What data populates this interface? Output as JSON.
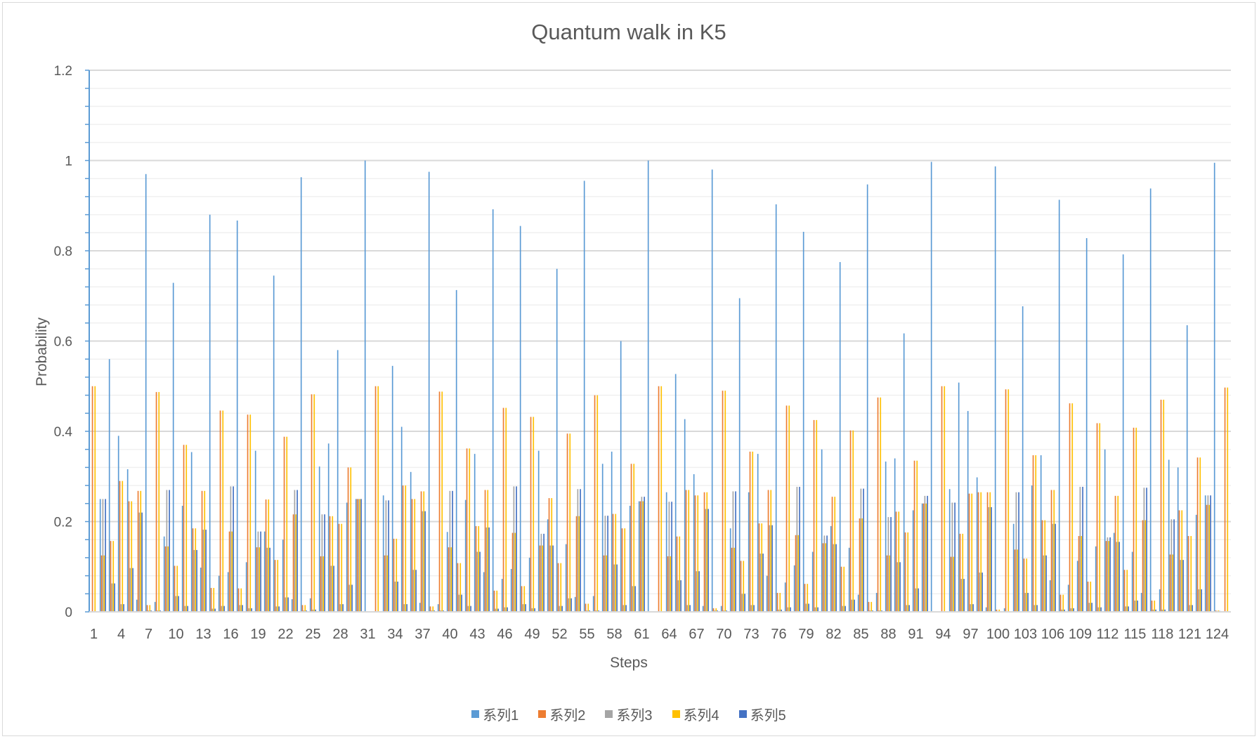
{
  "chart_data": {
    "type": "bar",
    "title": "Quantum walk in K5",
    "xlabel": "Steps",
    "ylabel": "Probability",
    "ylim": [
      0,
      1.2
    ],
    "yticks": [
      "0",
      "0.2",
      "0.4",
      "0.6",
      "0.8",
      "1",
      "1.2"
    ],
    "grid": true,
    "legend_position": "bottom",
    "x_tick_labels": [
      "1",
      "4",
      "7",
      "10",
      "13",
      "16",
      "19",
      "22",
      "25",
      "28",
      "31",
      "34",
      "37",
      "40",
      "43",
      "46",
      "49",
      "52",
      "55",
      "58",
      "61",
      "64",
      "67",
      "70",
      "73",
      "76",
      "79",
      "82",
      "85",
      "88",
      "91",
      "94",
      "97",
      "100",
      "103",
      "106",
      "109",
      "112",
      "115",
      "118",
      "121",
      "124"
    ],
    "categories": [
      1,
      2,
      3,
      4,
      5,
      6,
      7,
      8,
      9,
      10,
      11,
      12,
      13,
      14,
      15,
      16,
      17,
      18,
      19,
      20,
      21,
      22,
      23,
      24,
      25,
      26,
      27,
      28,
      29,
      30,
      31,
      32,
      33,
      34,
      35,
      36,
      37,
      38,
      39,
      40,
      41,
      42,
      43,
      44,
      45,
      46,
      47,
      48,
      49,
      50,
      51,
      52,
      53,
      54,
      55,
      56,
      57,
      58,
      59,
      60,
      61,
      62,
      63,
      64,
      65,
      66,
      67,
      68,
      69,
      70,
      71,
      72,
      73,
      74,
      75,
      76,
      77,
      78,
      79,
      80,
      81,
      82,
      83,
      84,
      85,
      86,
      87,
      88,
      89,
      90,
      91,
      92,
      93,
      94,
      95,
      96,
      97,
      98,
      99,
      100,
      101,
      102,
      103,
      104,
      105,
      106,
      107,
      108,
      109,
      110,
      111,
      112,
      113,
      114,
      115,
      116,
      117,
      118,
      119,
      120,
      121,
      122,
      123,
      124,
      125
    ],
    "series": [
      {
        "name": "系列1",
        "color": "#5B9BD5",
        "values": [
          0,
          0.25,
          0.56,
          0.39,
          0.316,
          0.027,
          0.97,
          0.022,
          0.167,
          0.729,
          0.235,
          0.354,
          0.098,
          0.88,
          0.08,
          0.088,
          0.867,
          0.11,
          0.357,
          0.178,
          0.745,
          0.16,
          0.028,
          0.963,
          0.03,
          0.322,
          0.373,
          0.58,
          0.242,
          0.25,
          1.0,
          0,
          0.258,
          0.545,
          0.41,
          0.31,
          0.02,
          0.975,
          0.017,
          0.177,
          0.713,
          0.248,
          0.35,
          0.088,
          0.892,
          0.073,
          0.095,
          0.855,
          0.12,
          0.357,
          0.205,
          0.76,
          0.15,
          0.033,
          0.955,
          0.035,
          0.328,
          0.355,
          0.6,
          0.235,
          0.245,
          1.0,
          0,
          0.265,
          0.527,
          0.427,
          0.305,
          0.013,
          0.98,
          0.013,
          0.185,
          0.695,
          0.265,
          0.35,
          0.08,
          0.903,
          0.065,
          0.103,
          0.842,
          0.133,
          0.36,
          0.19,
          0.775,
          0.142,
          0.038,
          0.947,
          0.042,
          0.333,
          0.34,
          0.617,
          0.225,
          0.24,
          0.997,
          0,
          0.272,
          0.508,
          0.445,
          0.298,
          0.01,
          0.987,
          0.008,
          0.195,
          0.677,
          0.28,
          0.347,
          0.07,
          0.913,
          0.06,
          0.113,
          0.828,
          0.145,
          0.36,
          0.175,
          0.792,
          0.133,
          0.042,
          0.938,
          0.05,
          0.337,
          0.32,
          0.635,
          0.215,
          0.258,
          0.995,
          0
        ]
      },
      {
        "name": "系列2",
        "color": "#ED7D31",
        "values": [
          0.5,
          0.125,
          0.157,
          0.29,
          0.245,
          0.268,
          0.015,
          0.487,
          0.145,
          0.102,
          0.37,
          0.185,
          0.268,
          0.053,
          0.446,
          0.178,
          0.052,
          0.437,
          0.143,
          0.249,
          0.115,
          0.388,
          0.216,
          0.015,
          0.482,
          0.123,
          0.212,
          0.195,
          0.32,
          0.25,
          0,
          0.5,
          0.125,
          0.162,
          0.28,
          0.25,
          0.267,
          0.012,
          0.488,
          0.143,
          0.108,
          0.362,
          0.19,
          0.27,
          0.047,
          0.452,
          0.175,
          0.057,
          0.432,
          0.147,
          0.252,
          0.108,
          0.395,
          0.212,
          0.018,
          0.48,
          0.125,
          0.217,
          0.185,
          0.328,
          0.245,
          0,
          0.5,
          0.123,
          0.167,
          0.27,
          0.258,
          0.265,
          0.008,
          0.49,
          0.142,
          0.113,
          0.355,
          0.196,
          0.27,
          0.042,
          0.457,
          0.17,
          0.062,
          0.425,
          0.152,
          0.255,
          0.1,
          0.402,
          0.207,
          0.022,
          0.475,
          0.125,
          0.222,
          0.176,
          0.335,
          0.24,
          0,
          0.5,
          0.122,
          0.173,
          0.262,
          0.265,
          0.265,
          0.005,
          0.493,
          0.138,
          0.118,
          0.347,
          0.203,
          0.27,
          0.038,
          0.462,
          0.168,
          0.067,
          0.418,
          0.157,
          0.257,
          0.093,
          0.408,
          0.203,
          0.025,
          0.47,
          0.127,
          0.225,
          0.168,
          0.342,
          0.237,
          0.003,
          0.497
        ]
      },
      {
        "name": "系列3",
        "color": "#A5A5A5",
        "values": [
          0,
          0.25,
          0.063,
          0.017,
          0.097,
          0.22,
          0.003,
          0.003,
          0.27,
          0.035,
          0.013,
          0.137,
          0.182,
          0.007,
          0.013,
          0.278,
          0.015,
          0.008,
          0.178,
          0.142,
          0.012,
          0.032,
          0.27,
          0.003,
          0.005,
          0.216,
          0.102,
          0.017,
          0.06,
          0.25,
          0,
          0,
          0.247,
          0.067,
          0.017,
          0.093,
          0.223,
          0.003,
          0.003,
          0.268,
          0.038,
          0.013,
          0.133,
          0.187,
          0.007,
          0.01,
          0.278,
          0.017,
          0.008,
          0.173,
          0.147,
          0.013,
          0.03,
          0.272,
          0.003,
          0.003,
          0.213,
          0.105,
          0.015,
          0.057,
          0.255,
          0,
          0,
          0.244,
          0.07,
          0.015,
          0.09,
          0.228,
          0.003,
          0.003,
          0.267,
          0.04,
          0.015,
          0.129,
          0.192,
          0.005,
          0.01,
          0.277,
          0.018,
          0.01,
          0.169,
          0.15,
          0.013,
          0.027,
          0.273,
          0.003,
          0.003,
          0.21,
          0.11,
          0.015,
          0.052,
          0.257,
          0,
          0,
          0.242,
          0.073,
          0.017,
          0.087,
          0.232,
          0.001,
          0.001,
          0.265,
          0.042,
          0.015,
          0.125,
          0.195,
          0.005,
          0.008,
          0.277,
          0.02,
          0.01,
          0.165,
          0.155,
          0.012,
          0.025,
          0.275,
          0.005,
          0.005,
          0.205,
          0.115,
          0.015,
          0.05,
          0.258,
          0.002,
          0
        ]
      },
      {
        "name": "系列4",
        "color": "#FFC000",
        "values": [
          0.5,
          0.125,
          0.157,
          0.29,
          0.245,
          0.268,
          0.015,
          0.487,
          0.145,
          0.102,
          0.37,
          0.185,
          0.268,
          0.053,
          0.446,
          0.178,
          0.052,
          0.437,
          0.143,
          0.249,
          0.115,
          0.388,
          0.216,
          0.015,
          0.482,
          0.123,
          0.212,
          0.195,
          0.32,
          0.25,
          0,
          0.5,
          0.125,
          0.162,
          0.28,
          0.25,
          0.267,
          0.012,
          0.488,
          0.143,
          0.108,
          0.362,
          0.19,
          0.27,
          0.047,
          0.452,
          0.175,
          0.057,
          0.432,
          0.147,
          0.252,
          0.108,
          0.395,
          0.212,
          0.018,
          0.48,
          0.125,
          0.217,
          0.185,
          0.328,
          0.245,
          0,
          0.5,
          0.123,
          0.167,
          0.27,
          0.258,
          0.265,
          0.008,
          0.49,
          0.142,
          0.113,
          0.355,
          0.196,
          0.27,
          0.042,
          0.457,
          0.17,
          0.062,
          0.425,
          0.152,
          0.255,
          0.1,
          0.402,
          0.207,
          0.022,
          0.475,
          0.125,
          0.222,
          0.176,
          0.335,
          0.24,
          0,
          0.5,
          0.122,
          0.173,
          0.262,
          0.265,
          0.265,
          0.005,
          0.493,
          0.138,
          0.118,
          0.347,
          0.203,
          0.27,
          0.038,
          0.462,
          0.168,
          0.067,
          0.418,
          0.157,
          0.257,
          0.093,
          0.408,
          0.203,
          0.025,
          0.47,
          0.127,
          0.225,
          0.168,
          0.342,
          0.237,
          0.003,
          0.497
        ]
      },
      {
        "name": "系列5",
        "color": "#4472C4",
        "values": [
          0,
          0.25,
          0.063,
          0.017,
          0.097,
          0.22,
          0.003,
          0.003,
          0.27,
          0.035,
          0.013,
          0.137,
          0.182,
          0.007,
          0.013,
          0.278,
          0.015,
          0.008,
          0.178,
          0.142,
          0.012,
          0.032,
          0.27,
          0.003,
          0.005,
          0.216,
          0.102,
          0.017,
          0.06,
          0.25,
          0,
          0,
          0.247,
          0.067,
          0.017,
          0.093,
          0.223,
          0.003,
          0.003,
          0.268,
          0.038,
          0.013,
          0.133,
          0.187,
          0.007,
          0.01,
          0.278,
          0.017,
          0.008,
          0.173,
          0.147,
          0.013,
          0.03,
          0.272,
          0.003,
          0.003,
          0.213,
          0.105,
          0.015,
          0.057,
          0.255,
          0,
          0,
          0.244,
          0.07,
          0.015,
          0.09,
          0.228,
          0.003,
          0.003,
          0.267,
          0.04,
          0.015,
          0.129,
          0.192,
          0.005,
          0.01,
          0.277,
          0.018,
          0.01,
          0.169,
          0.15,
          0.013,
          0.027,
          0.273,
          0.003,
          0.003,
          0.21,
          0.11,
          0.015,
          0.052,
          0.257,
          0,
          0,
          0.242,
          0.073,
          0.017,
          0.087,
          0.232,
          0.001,
          0.001,
          0.265,
          0.042,
          0.015,
          0.125,
          0.195,
          0.005,
          0.008,
          0.277,
          0.02,
          0.01,
          0.165,
          0.155,
          0.012,
          0.025,
          0.275,
          0.005,
          0.005,
          0.205,
          0.115,
          0.015,
          0.05,
          0.258,
          0.002,
          0
        ]
      }
    ]
  }
}
